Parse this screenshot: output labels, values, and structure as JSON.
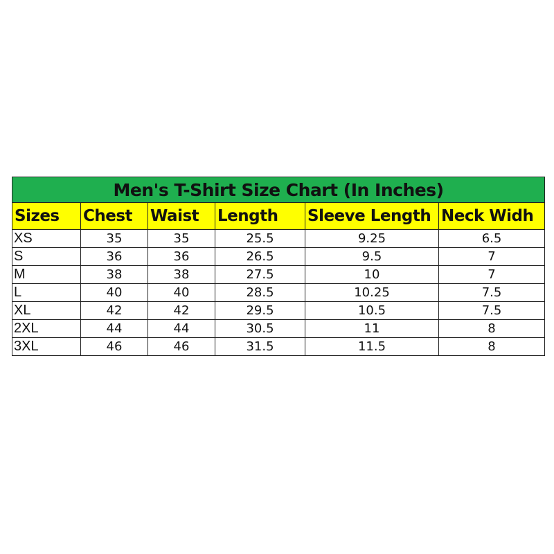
{
  "title": "Men's T-Shirt Size Chart (In Inches)",
  "colors": {
    "title_bg": "#1faf4f",
    "header_bg": "#ffff00"
  },
  "headers": [
    "Sizes",
    "Chest",
    "Waist",
    "Length",
    "Sleeve Length",
    "Neck Widh"
  ],
  "rows": [
    [
      "XS",
      "35",
      "35",
      "25.5",
      "9.25",
      "6.5"
    ],
    [
      "S",
      "36",
      "36",
      "26.5",
      "9.5",
      "7"
    ],
    [
      "M",
      "38",
      "38",
      "27.5",
      "10",
      "7"
    ],
    [
      "L",
      "40",
      "40",
      "28.5",
      "10.25",
      "7.5"
    ],
    [
      "XL",
      "42",
      "42",
      "29.5",
      "10.5",
      "7.5"
    ],
    [
      "2XL",
      "44",
      "44",
      "30.5",
      "11",
      "8"
    ],
    [
      "3XL",
      "46",
      "46",
      "31.5",
      "11.5",
      "8"
    ]
  ]
}
